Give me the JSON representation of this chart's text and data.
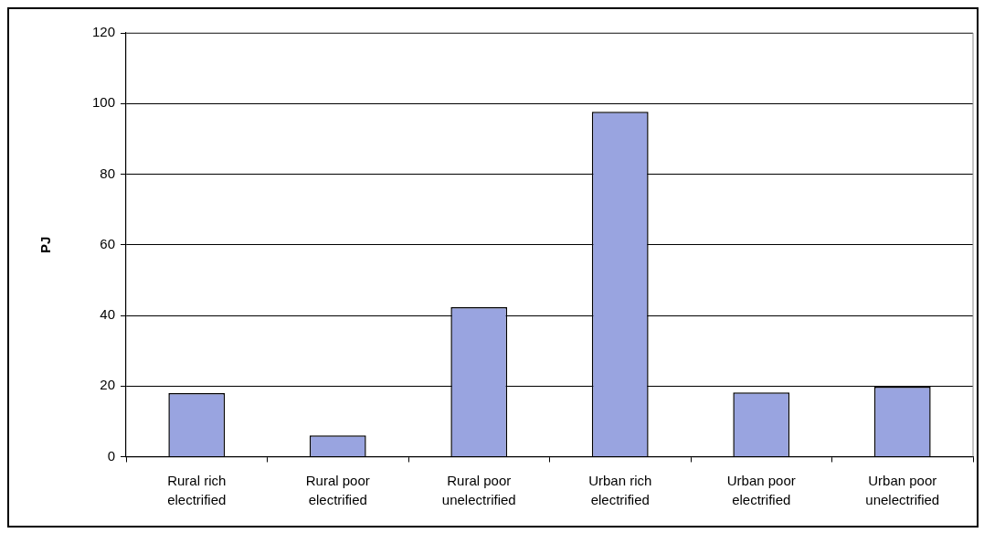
{
  "chart_data": {
    "type": "bar",
    "ylabel": "PJ",
    "categories": [
      "Rural rich electrified",
      "Rural poor electrified",
      "Rural poor unelectrified",
      "Urban rich electrified",
      "Urban poor electrified",
      "Urban poor unelectrified"
    ],
    "values": [
      18,
      6,
      42.3,
      97.7,
      18.2,
      19.8
    ],
    "color": "#99a4e0",
    "ylim": [
      0,
      120
    ],
    "yticks": [
      0,
      20,
      40,
      60,
      80,
      100,
      120
    ],
    "grid": "y"
  }
}
